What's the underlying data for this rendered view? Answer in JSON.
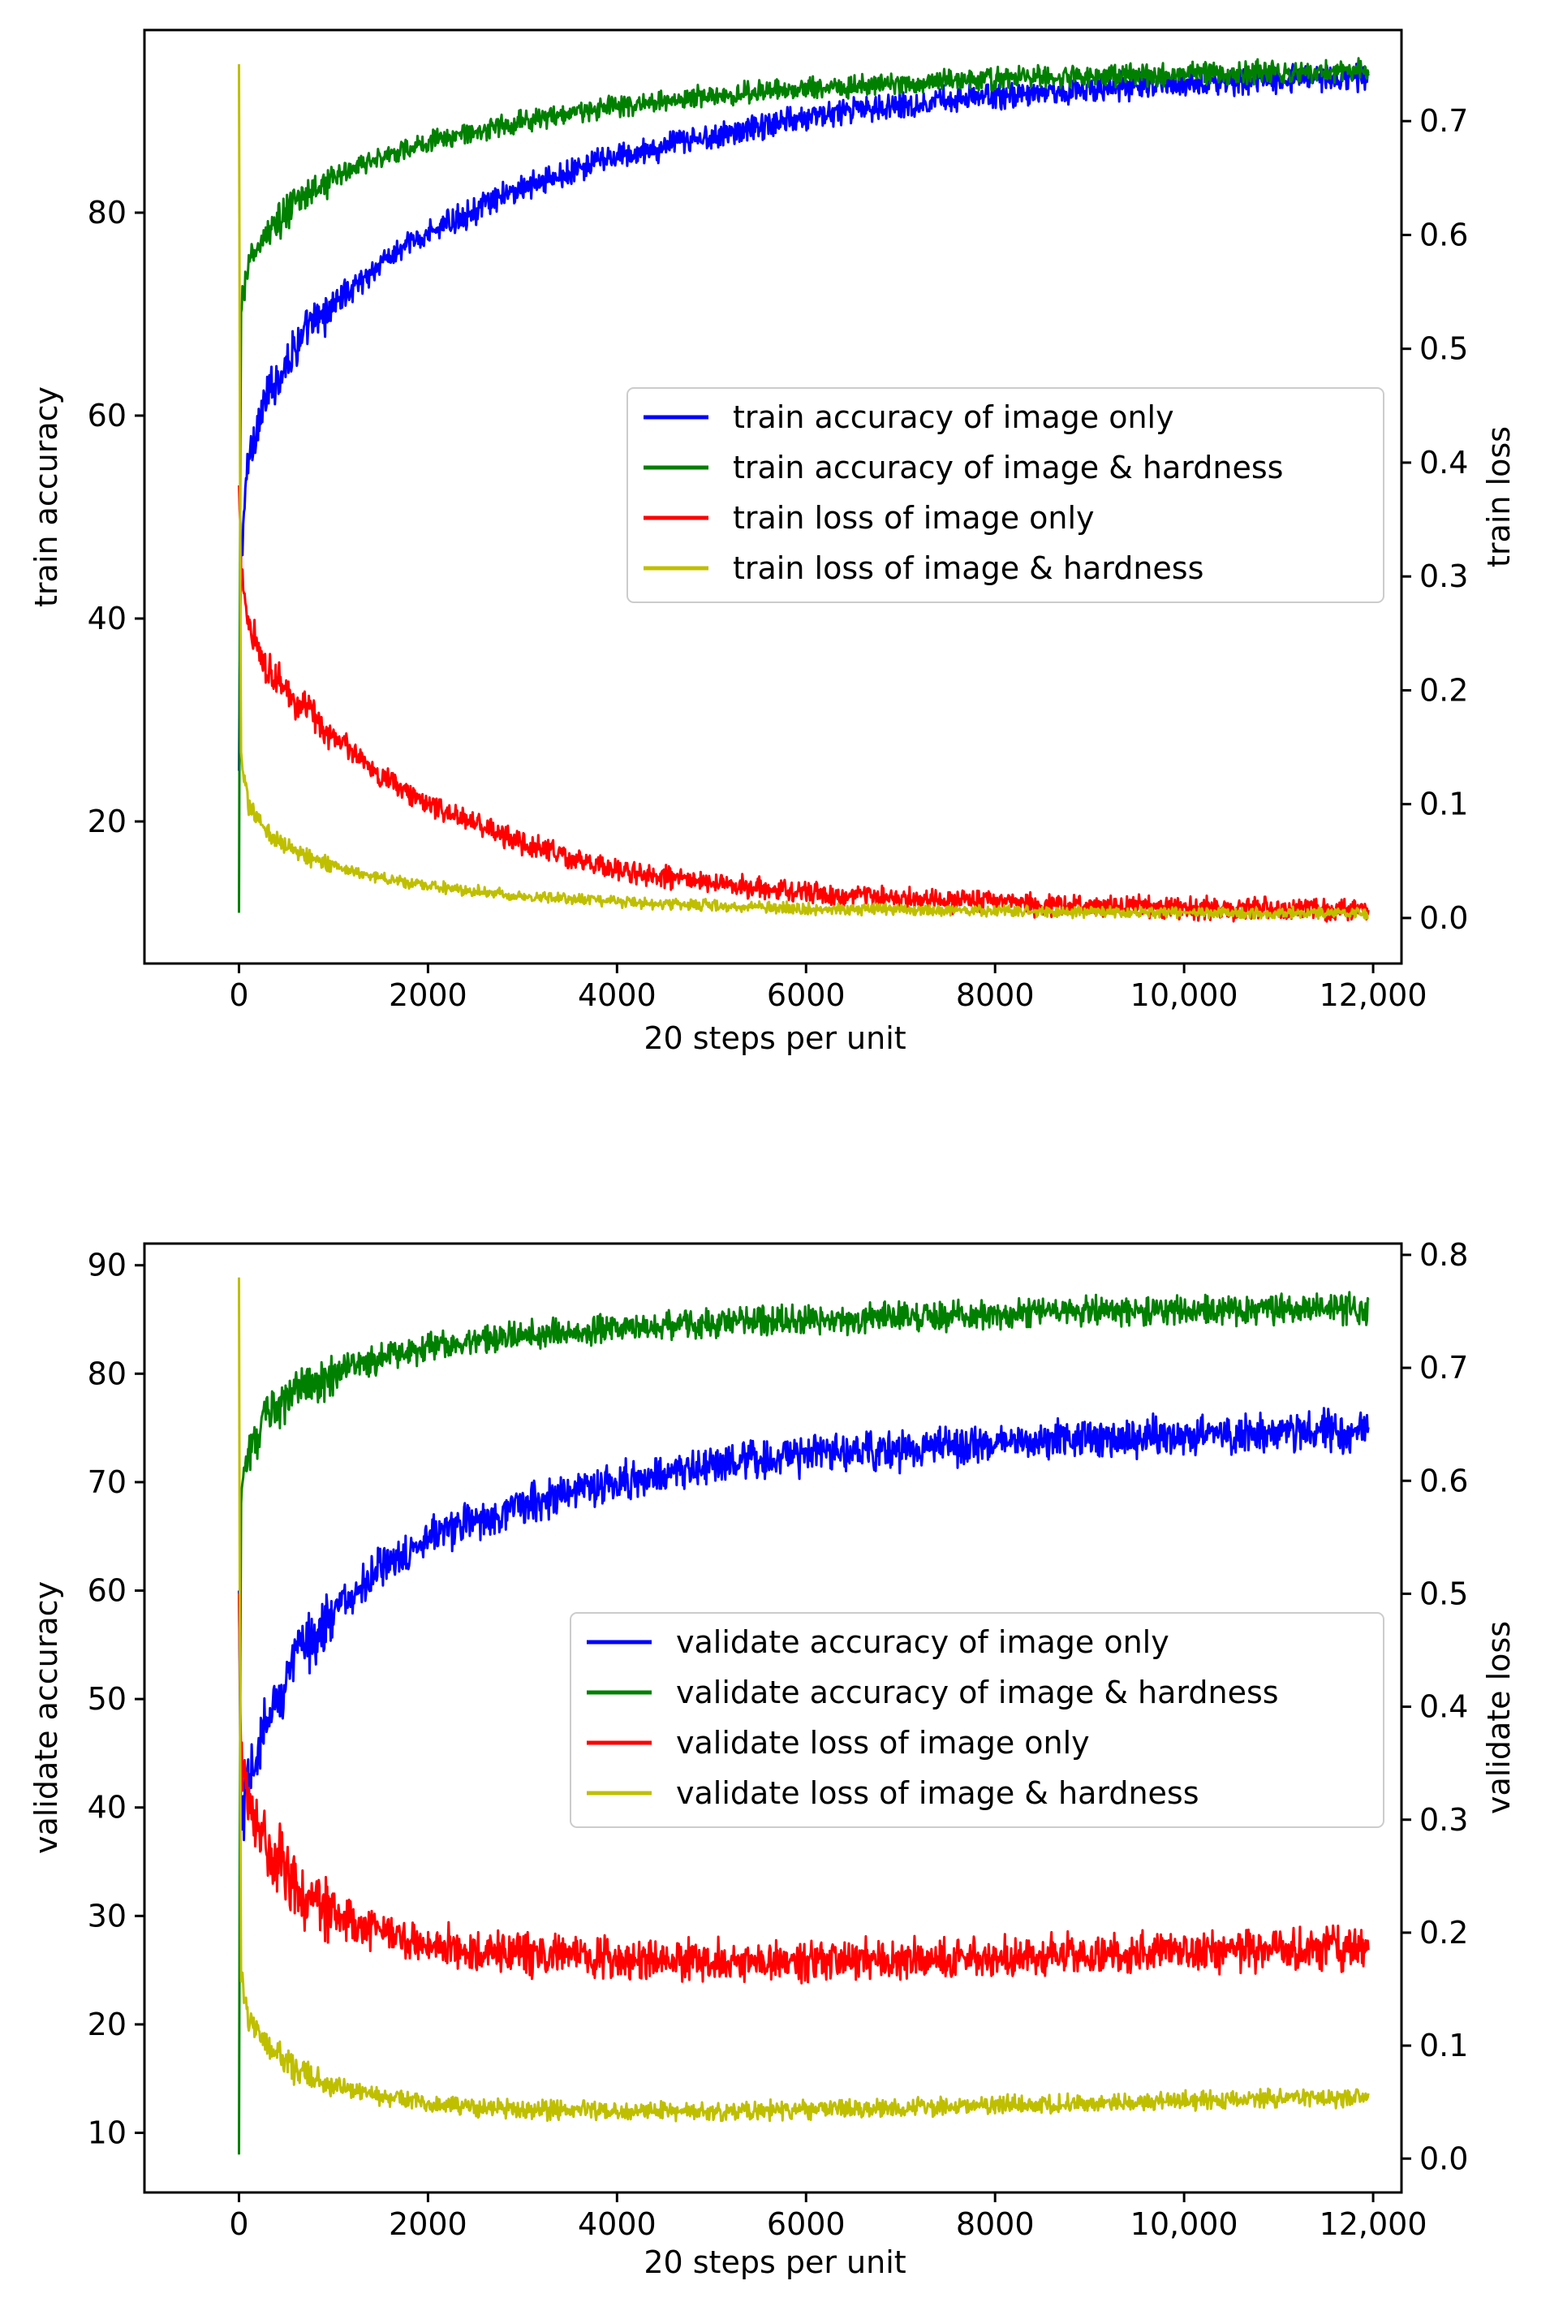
{
  "chart_data": [
    {
      "type": "line",
      "xlabel": "20 steps per unit",
      "ylabel": "train accuracy",
      "ylabel_right": "train loss",
      "xlim": [
        -1000,
        12300
      ],
      "ylim": [
        6,
        98
      ],
      "ylim_right": [
        -0.04,
        0.78
      ],
      "x_ticks": [
        0,
        2000,
        4000,
        6000,
        8000,
        10000,
        12000
      ],
      "x_tick_labels": [
        "0",
        "2000",
        "4000",
        "6000",
        "8000",
        "10,000",
        "12,000"
      ],
      "y_ticks": [
        20,
        40,
        60,
        80
      ],
      "y_tick_labels": [
        "20",
        "40",
        "60",
        "80"
      ],
      "y_right_ticks": [
        0.0,
        0.1,
        0.2,
        0.3,
        0.4,
        0.5,
        0.6,
        0.7
      ],
      "y_right_tick_labels": [
        "0.0",
        "0.1",
        "0.2",
        "0.3",
        "0.4",
        "0.5",
        "0.6",
        "0.7"
      ],
      "legend_position": "center-right",
      "series": [
        {
          "name": "train accuracy of image only",
          "axis": "left",
          "color": "#0000ff",
          "noise": 1.6,
          "x": [
            0,
            20,
            100,
            300,
            600,
            1000,
            1500,
            2000,
            3000,
            4000,
            5000,
            6000,
            7000,
            8000,
            9000,
            10000,
            11000,
            11950
          ],
          "y": [
            25,
            46,
            56,
            62,
            67,
            71,
            75,
            78,
            82.5,
            85.5,
            87.5,
            89.5,
            90.7,
            91.5,
            92.2,
            92.7,
            93.1,
            93.4
          ]
        },
        {
          "name": "train accuracy of image & hardness",
          "axis": "left",
          "color": "#008000",
          "noise": 1.3,
          "x": [
            0,
            20,
            100,
            300,
            600,
            1000,
            1500,
            2000,
            3000,
            4000,
            5000,
            6000,
            7000,
            8000,
            9000,
            10000,
            11000,
            11950
          ],
          "y": [
            11,
            70,
            75,
            78,
            81,
            83.5,
            85.5,
            87,
            89,
            90.5,
            91.5,
            92.3,
            92.8,
            93.2,
            93.5,
            93.7,
            93.9,
            94
          ]
        },
        {
          "name": "train loss of image only",
          "axis": "right",
          "color": "#ff0000",
          "noise": 0.012,
          "x": [
            0,
            20,
            100,
            300,
            600,
            1000,
            1500,
            2000,
            3000,
            4000,
            5000,
            6000,
            7000,
            8000,
            9000,
            10000,
            11000,
            11950
          ],
          "y": [
            0.38,
            0.31,
            0.26,
            0.22,
            0.19,
            0.16,
            0.125,
            0.1,
            0.065,
            0.042,
            0.03,
            0.022,
            0.017,
            0.013,
            0.011,
            0.009,
            0.008,
            0.007
          ]
        },
        {
          "name": "train loss of image & hardness",
          "axis": "right",
          "color": "#bfbf00",
          "noise": 0.006,
          "x": [
            0,
            20,
            100,
            300,
            600,
            1000,
            1500,
            2000,
            3000,
            4000,
            5000,
            6000,
            7000,
            8000,
            9000,
            10000,
            11000,
            11950
          ],
          "y": [
            0.75,
            0.14,
            0.1,
            0.075,
            0.058,
            0.045,
            0.035,
            0.028,
            0.019,
            0.014,
            0.011,
            0.008,
            0.007,
            0.006,
            0.005,
            0.005,
            0.004,
            0.004
          ]
        }
      ]
    },
    {
      "type": "line",
      "xlabel": "20 steps per unit",
      "ylabel": "validate accuracy",
      "ylabel_right": "validate loss",
      "xlim": [
        -1000,
        12300
      ],
      "ylim": [
        4.5,
        92
      ],
      "ylim_right": [
        -0.03,
        0.81
      ],
      "x_ticks": [
        0,
        2000,
        4000,
        6000,
        8000,
        10000,
        12000
      ],
      "x_tick_labels": [
        "0",
        "2000",
        "4000",
        "6000",
        "8000",
        "10,000",
        "12,000"
      ],
      "y_ticks": [
        10,
        20,
        30,
        40,
        50,
        60,
        70,
        80,
        90
      ],
      "y_tick_labels": [
        "10",
        "20",
        "30",
        "40",
        "50",
        "60",
        "70",
        "80",
        "90"
      ],
      "y_right_ticks": [
        0.0,
        0.1,
        0.2,
        0.3,
        0.4,
        0.5,
        0.6,
        0.7,
        0.8
      ],
      "y_right_tick_labels": [
        "0.0",
        "0.1",
        "0.2",
        "0.3",
        "0.4",
        "0.5",
        "0.6",
        "0.7",
        "0.8"
      ],
      "legend_position": "center-right",
      "series": [
        {
          "name": "validate accuracy of image only",
          "axis": "left",
          "color": "#0000ff",
          "noise": 2.2,
          "x": [
            0,
            20,
            100,
            300,
            600,
            1000,
            1500,
            2000,
            3000,
            4000,
            5000,
            6000,
            7000,
            8000,
            9000,
            10000,
            11000,
            11950
          ],
          "y": [
            60,
            38,
            42,
            48,
            54,
            58,
            62,
            65,
            68,
            70,
            71.5,
            72.5,
            73,
            73.5,
            74,
            74.3,
            74.6,
            74.8
          ]
        },
        {
          "name": "validate accuracy of image & hardness",
          "axis": "left",
          "color": "#008000",
          "noise": 1.6,
          "x": [
            0,
            20,
            100,
            300,
            600,
            1000,
            1500,
            2000,
            3000,
            4000,
            5000,
            6000,
            7000,
            8000,
            9000,
            10000,
            11000,
            11950
          ],
          "y": [
            8,
            70,
            73,
            76,
            78.5,
            80,
            81.5,
            82.5,
            83.5,
            84.2,
            84.7,
            85,
            85.3,
            85.5,
            85.7,
            85.8,
            85.9,
            86
          ]
        },
        {
          "name": "validate loss of image only",
          "axis": "right",
          "color": "#ff0000",
          "noise": 0.022,
          "x": [
            0,
            20,
            100,
            300,
            600,
            1000,
            1500,
            2000,
            3000,
            4000,
            5000,
            6000,
            7000,
            8000,
            9000,
            10000,
            11000,
            11950
          ],
          "y": [
            0.5,
            0.36,
            0.32,
            0.28,
            0.24,
            0.215,
            0.2,
            0.19,
            0.18,
            0.175,
            0.175,
            0.175,
            0.177,
            0.179,
            0.181,
            0.183,
            0.185,
            0.187
          ]
        },
        {
          "name": "validate loss of image & hardness",
          "axis": "right",
          "color": "#bfbf00",
          "noise": 0.01,
          "x": [
            0,
            20,
            100,
            300,
            600,
            1000,
            1500,
            2000,
            3000,
            4000,
            5000,
            6000,
            7000,
            8000,
            9000,
            10000,
            11000,
            11950
          ],
          "y": [
            0.78,
            0.16,
            0.12,
            0.1,
            0.08,
            0.065,
            0.055,
            0.048,
            0.043,
            0.042,
            0.042,
            0.043,
            0.045,
            0.047,
            0.049,
            0.051,
            0.053,
            0.055
          ]
        }
      ]
    }
  ]
}
